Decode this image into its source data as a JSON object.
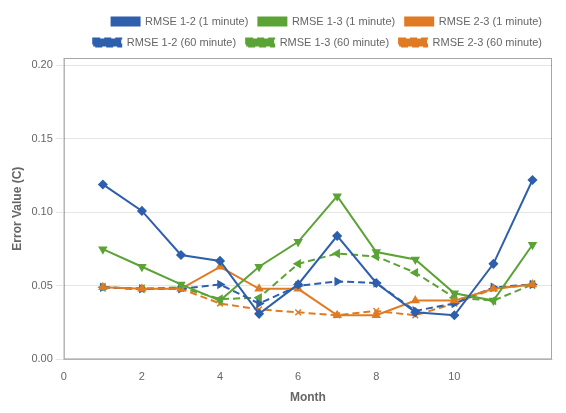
{
  "chart_data": {
    "type": "line",
    "x_label": "Month",
    "y_label": "Error Value (C)",
    "x": [
      1,
      2,
      3,
      4,
      5,
      6,
      7,
      8,
      9,
      10,
      11,
      12
    ],
    "xlim": [
      0,
      12.5
    ],
    "xticks": [
      0,
      2,
      4,
      6,
      8,
      10
    ],
    "ylim": [
      0.0,
      0.205
    ],
    "yticks": [
      {
        "value": 0.0,
        "label": "0.00"
      },
      0.05,
      {
        "value": 0.1,
        "label": "0.10"
      },
      0.15,
      {
        "value": 0.2,
        "label": "0.20"
      }
    ],
    "grid": "y",
    "legend": "upper right",
    "series": [
      {
        "name": "RMSE 1-2 (1 minute)",
        "color": "#2E5FAC",
        "line_style": "solid",
        "marker": "diamond",
        "values": [
          0.119,
          0.101,
          0.071,
          0.067,
          0.031,
          0.051,
          0.084,
          0.052,
          0.032,
          0.03,
          0.065,
          0.122
        ]
      },
      {
        "name": "RMSE 1-3 (1 minute)",
        "color": "#5BA334",
        "line_style": "solid",
        "marker": "triangle_down",
        "values": [
          0.075,
          0.063,
          0.051,
          0.04,
          0.063,
          0.08,
          0.111,
          0.073,
          0.068,
          0.045,
          0.04,
          0.078
        ]
      },
      {
        "name": "RMSE 2-3 (1 minute)",
        "color": "#E07B23",
        "line_style": "solid",
        "marker": "triangle_up",
        "values": [
          0.049,
          0.048,
          0.048,
          0.063,
          0.048,
          0.048,
          0.03,
          0.03,
          0.04,
          0.04,
          0.048,
          0.051
        ]
      },
      {
        "name": "RMSE 1-2 (60 minute)",
        "color": "#2E5FAC",
        "line_style": "dashed",
        "marker": "triangle_right",
        "values": [
          0.049,
          0.048,
          0.048,
          0.051,
          0.038,
          0.05,
          0.053,
          0.052,
          0.033,
          0.038,
          0.049,
          0.051
        ]
      },
      {
        "name": "RMSE 1-3 (60 minute)",
        "color": "#5BA334",
        "line_style": "dashed",
        "marker": "triangle_left",
        "values": [
          0.049,
          0.048,
          0.049,
          0.041,
          0.042,
          0.065,
          0.072,
          0.07,
          0.059,
          0.042,
          0.04,
          0.051
        ]
      },
      {
        "name": "RMSE 2-3 (60 minute)",
        "color": "#E07B23",
        "line_style": "dashed",
        "marker": "x",
        "values": [
          0.049,
          0.048,
          0.048,
          0.038,
          0.034,
          0.032,
          0.03,
          0.033,
          0.03,
          0.038,
          0.048,
          0.051
        ]
      }
    ]
  }
}
